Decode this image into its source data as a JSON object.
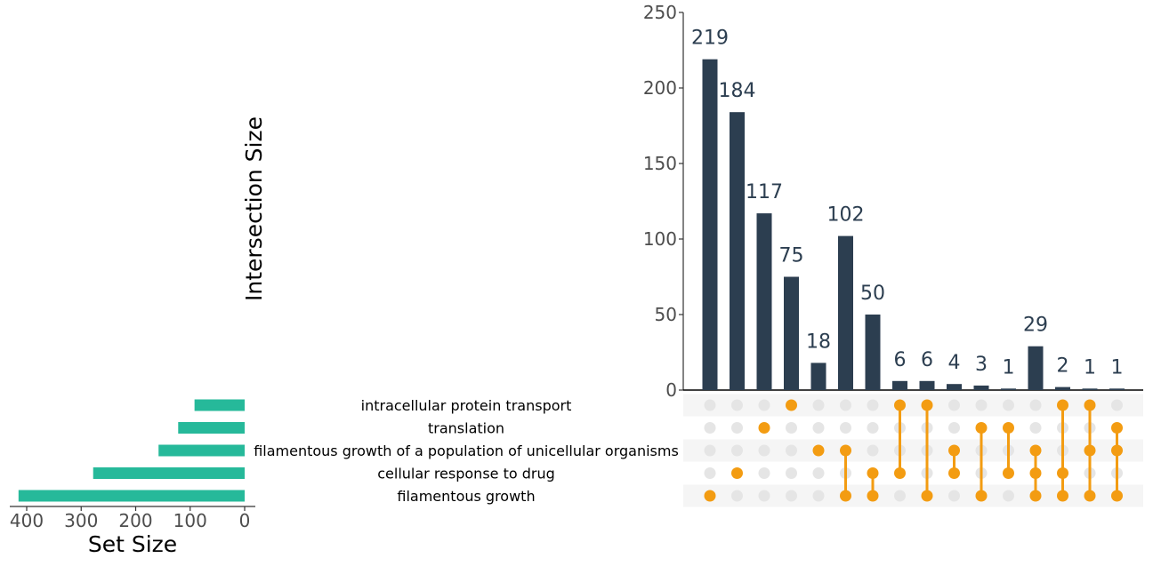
{
  "chart_data": {
    "type": "bar",
    "subtype": "upset",
    "ylabel": "Intersection Size",
    "xlabel_sets": "Set Size",
    "ylim": [
      0,
      250
    ],
    "yticks": [
      "0",
      "50",
      "100",
      "150",
      "200",
      "250"
    ],
    "set_size_ticks": [
      "400",
      "300",
      "200",
      "100",
      "0"
    ],
    "set_size_lim": [
      0,
      420
    ],
    "bar_color": "#2c3e50",
    "set_bar_color": "#26b99a",
    "dot_active_color": "#f39c12",
    "dot_inactive_color": "#e5e5e5",
    "stripe_color": "#f5f5f5",
    "sets": [
      {
        "name": "intracellular protein transport",
        "size": 92
      },
      {
        "name": "translation",
        "size": 122
      },
      {
        "name": "filamentous growth of a population of unicellular organisms",
        "size": 158
      },
      {
        "name": "cellular response to drug",
        "size": 278
      },
      {
        "name": "filamentous growth",
        "size": 415
      }
    ],
    "intersections": [
      {
        "value": 219,
        "label": "219",
        "sets": [
          4
        ]
      },
      {
        "value": 184,
        "label": "184",
        "sets": [
          3
        ]
      },
      {
        "value": 117,
        "label": "117",
        "sets": [
          1
        ]
      },
      {
        "value": 75,
        "label": "75",
        "sets": [
          0
        ]
      },
      {
        "value": 18,
        "label": "18",
        "sets": [
          2
        ]
      },
      {
        "value": 102,
        "label": "102",
        "sets": [
          2,
          4
        ]
      },
      {
        "value": 50,
        "label": "50",
        "sets": [
          3,
          4
        ]
      },
      {
        "value": 6,
        "label": "6",
        "sets": [
          0,
          3
        ]
      },
      {
        "value": 6,
        "label": "6",
        "sets": [
          0,
          4
        ]
      },
      {
        "value": 4,
        "label": "4",
        "sets": [
          2,
          3
        ]
      },
      {
        "value": 3,
        "label": "3",
        "sets": [
          1,
          4
        ]
      },
      {
        "value": 1,
        "label": "1",
        "sets": [
          1,
          3
        ]
      },
      {
        "value": 29,
        "label": "29",
        "sets": [
          2,
          3,
          4
        ]
      },
      {
        "value": 2,
        "label": "2",
        "sets": [
          0,
          3,
          4
        ]
      },
      {
        "value": 1,
        "label": "1",
        "sets": [
          0,
          2,
          4
        ]
      },
      {
        "value": 1,
        "label": "1",
        "sets": [
          1,
          2,
          4
        ]
      }
    ]
  }
}
